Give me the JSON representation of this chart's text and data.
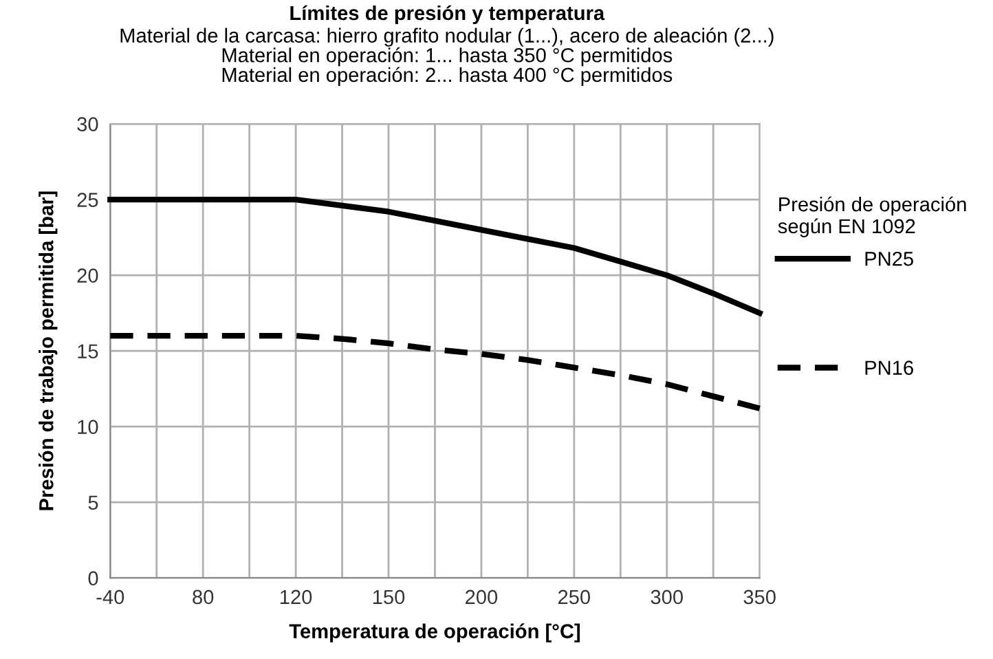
{
  "chart_data": {
    "type": "line",
    "title": "Límites de presión y temperatura",
    "subtitle": "Material de la carcasa: hierro grafito nodular (1...), acero de aleación (2...)\nMaterial en operación: 1... hasta 350 °C permitidos\nMaterial en operación: 2... hasta 400 °C permitidos",
    "xlabel": "Temperatura de operación [°C]",
    "ylabel": "Presión de trabajo permitida [bar]",
    "legend_title": "Presión de operación\nsegún EN 1092",
    "categories": [
      "-40",
      null,
      "80",
      null,
      "120",
      null,
      "150",
      null,
      "200",
      null,
      "250",
      null,
      "300",
      null,
      "350"
    ],
    "series": [
      {
        "name": "PN25",
        "color": "#000000",
        "line_style": "solid",
        "values": [
          25,
          25,
          25,
          25,
          25,
          24.6,
          24.2,
          23.6,
          23.0,
          22.4,
          21.8,
          20.9,
          20.0,
          18.8,
          17.5
        ]
      },
      {
        "name": "PN16",
        "color": "#000000",
        "line_style": "dashed",
        "values": [
          16,
          16,
          16,
          16,
          16,
          15.8,
          15.5,
          15.1,
          14.8,
          14.4,
          13.9,
          13.4,
          12.8,
          12.0,
          11.2
        ]
      }
    ],
    "ylim": [
      0,
      30
    ],
    "yticks": [
      0,
      5,
      10,
      15,
      20,
      25,
      30
    ],
    "grid": true,
    "legend": "right",
    "marker": "none"
  }
}
